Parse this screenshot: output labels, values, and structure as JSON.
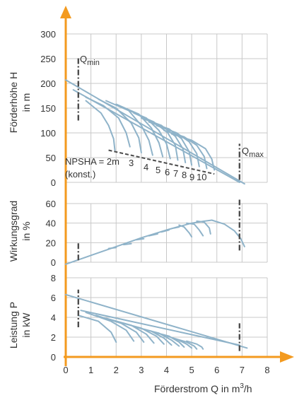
{
  "colors": {
    "curve": "#8fb3c9",
    "grid": "#c8c8c8",
    "axis": "#f39a1f",
    "dash": "#4d4d4d",
    "tick": "#333333"
  },
  "chart_data": [
    {
      "type": "line",
      "ylabel": [
        "Förderhöhe H",
        "in  m"
      ],
      "ylim": [
        0,
        300
      ],
      "y_ticks": [
        "0",
        "50",
        "100",
        "150",
        "200",
        "250",
        "300"
      ],
      "xlim": [
        0,
        8
      ],
      "grid": true,
      "series": [
        {
          "x": [
            0,
            7.1
          ],
          "y": [
            207,
            -3
          ]
        },
        {
          "x": [
            0.3,
            6.9
          ],
          "y": [
            187,
            0
          ]
        },
        {
          "x": [
            0.8,
            1.4,
            1.7,
            1.9,
            1.95
          ],
          "y": [
            165,
            140,
            115,
            88,
            65
          ]
        },
        {
          "x": [
            0.8,
            1.5,
            2.1,
            2.4,
            2.55
          ],
          "y": [
            172,
            155,
            130,
            100,
            72
          ]
        },
        {
          "x": [
            1.3,
            2.0,
            2.6,
            2.9,
            3.0
          ],
          "y": [
            168,
            150,
            120,
            90,
            60
          ]
        },
        {
          "x": [
            1.6,
            2.5,
            3.0,
            3.3,
            3.45
          ],
          "y": [
            165,
            145,
            115,
            85,
            55
          ]
        },
        {
          "x": [
            2.0,
            2.9,
            3.4,
            3.7,
            3.85
          ],
          "y": [
            158,
            138,
            110,
            80,
            52
          ]
        },
        {
          "x": [
            2.3,
            3.2,
            3.7,
            4.0,
            4.15
          ],
          "y": [
            150,
            130,
            105,
            78,
            48
          ]
        },
        {
          "x": [
            2.7,
            3.5,
            4.05,
            4.35,
            4.45
          ],
          "y": [
            140,
            122,
            100,
            75,
            45
          ]
        },
        {
          "x": [
            3.0,
            3.8,
            4.35,
            4.65,
            4.75
          ],
          "y": [
            130,
            115,
            93,
            68,
            40
          ]
        },
        {
          "x": [
            3.3,
            4.1,
            4.6,
            4.9,
            5.0
          ],
          "y": [
            122,
            108,
            88,
            62,
            35
          ]
        },
        {
          "x": [
            3.6,
            4.4,
            4.9,
            5.2,
            5.3
          ],
          "y": [
            115,
            100,
            82,
            58,
            32
          ]
        },
        {
          "x": [
            3.9,
            4.7,
            5.2,
            5.5,
            5.6
          ],
          "y": [
            105,
            92,
            75,
            52,
            28
          ]
        },
        {
          "x": [
            4.2,
            5.0,
            5.55,
            5.8,
            5.9
          ],
          "y": [
            98,
            85,
            68,
            47,
            25
          ]
        }
      ],
      "npsha_line": {
        "x": [
          1.7,
          5.9
        ],
        "y": [
          65,
          17
        ]
      },
      "qmin": {
        "x": 0.5,
        "y": [
          125,
          255
        ]
      },
      "qmax": {
        "x": 6.9,
        "y": [
          5,
          78
        ]
      },
      "npsha_label": [
        "NPSHA = 2m",
        "(konst.)"
      ],
      "npsha_values": [
        "3",
        "4",
        "5",
        "6",
        "7",
        "8",
        "9",
        "10"
      ],
      "qmin_label": {
        "main": "Q",
        "sub": "min"
      },
      "qmax_label": {
        "main": "Q",
        "sub": "max"
      }
    },
    {
      "type": "line",
      "ylabel": [
        "Wirkungsgrad",
        "in %"
      ],
      "ylim": [
        0,
        60
      ],
      "y_ticks": [
        "0",
        "20",
        "40",
        "60"
      ],
      "xlim": [
        0,
        8
      ],
      "grid": true,
      "series": [
        {
          "x": [
            0,
            1,
            2,
            3,
            4,
            5.0,
            5.5,
            5.8
          ],
          "y": [
            -2,
            7,
            16,
            25,
            33,
            40,
            42,
            43
          ]
        },
        {
          "x": [
            5.8,
            6.3,
            6.7,
            6.95,
            7.1
          ],
          "y": [
            43,
            39,
            32,
            24,
            16
          ]
        },
        {
          "x": [
            1.7,
            2.0
          ],
          "y": [
            14,
            15
          ]
        },
        {
          "x": [
            2.3,
            2.6
          ],
          "y": [
            18,
            19
          ]
        },
        {
          "x": [
            2.8,
            3.1
          ],
          "y": [
            23,
            24
          ]
        },
        {
          "x": [
            3.3,
            3.65
          ],
          "y": [
            27,
            29
          ]
        },
        {
          "x": [
            3.8,
            4.1
          ],
          "y": [
            31,
            33
          ]
        },
        {
          "x": [
            4.3,
            4.5
          ],
          "y": [
            35,
            36
          ]
        },
        {
          "x": [
            4.5,
            4.7,
            4.9,
            5.0
          ],
          "y": [
            38,
            36,
            30,
            26
          ]
        },
        {
          "x": [
            4.8,
            5.1,
            5.3,
            5.45
          ],
          "y": [
            40,
            39,
            33,
            27
          ]
        },
        {
          "x": [
            5.2,
            5.5,
            5.7,
            5.75
          ],
          "y": [
            42,
            41,
            35,
            29
          ]
        }
      ],
      "qmin": {
        "x": 0.5,
        "y": [
          2,
          20
        ]
      },
      "qmax": {
        "x": 6.9,
        "y": [
          12,
          64
        ]
      }
    },
    {
      "type": "line",
      "ylabel": [
        "Leistung P",
        "in kW"
      ],
      "ylim": [
        0,
        8
      ],
      "y_ticks": [
        "0",
        "2",
        "4",
        "6",
        "8"
      ],
      "xlim": [
        0,
        8
      ],
      "x_ticks": [
        "0",
        "1",
        "2",
        "3",
        "4",
        "5",
        "6",
        "7",
        "8"
      ],
      "xlabel": {
        "main": "Förderstrom Q in m",
        "sup": "3",
        "end": "/h"
      },
      "grid": true,
      "series": [
        {
          "x": [
            0,
            7.2
          ],
          "y": [
            6.3,
            0.9
          ]
        },
        {
          "x": [
            0.6,
            6.9
          ],
          "y": [
            4.7,
            1.2
          ]
        },
        {
          "x": [
            0.5,
            1.3,
            1.8,
            2.0
          ],
          "y": [
            4.2,
            3.6,
            2.5,
            1.5
          ]
        },
        {
          "x": [
            0.8,
            1.8,
            2.4,
            2.7
          ],
          "y": [
            4.5,
            3.6,
            2.7,
            1.6
          ]
        },
        {
          "x": [
            1.2,
            2.2,
            2.8,
            3.1
          ],
          "y": [
            4.2,
            3.4,
            2.5,
            1.5
          ]
        },
        {
          "x": [
            1.6,
            2.6,
            3.2,
            3.5
          ],
          "y": [
            3.9,
            3.2,
            2.3,
            1.4
          ]
        },
        {
          "x": [
            2.0,
            3.0,
            3.6,
            3.9
          ],
          "y": [
            3.6,
            2.9,
            2.1,
            1.3
          ]
        },
        {
          "x": [
            2.8,
            3.4,
            3.9,
            4.2
          ],
          "y": [
            3.0,
            2.6,
            1.9,
            1.2
          ]
        },
        {
          "x": [
            3.1,
            3.7,
            4.2,
            4.5
          ],
          "y": [
            2.8,
            2.4,
            1.7,
            1.1
          ]
        },
        {
          "x": [
            3.5,
            4.1,
            4.5,
            4.7
          ],
          "y": [
            2.5,
            2.1,
            1.5,
            1.0
          ]
        },
        {
          "x": [
            3.9,
            4.4,
            4.8,
            5.0
          ],
          "y": [
            2.2,
            1.8,
            1.3,
            0.9
          ]
        },
        {
          "x": [
            4.4,
            4.8,
            5.1,
            5.2
          ],
          "y": [
            1.8,
            1.5,
            1.1,
            0.8
          ]
        },
        {
          "x": [
            4.8,
            5.2,
            5.4,
            5.45
          ],
          "y": [
            1.6,
            1.3,
            1.0,
            0.8
          ]
        }
      ],
      "qmin": {
        "x": 0.5,
        "y": [
          3.0,
          6.8
        ]
      },
      "qmax": {
        "x": 6.9,
        "y": [
          0.6,
          3.4
        ]
      }
    }
  ]
}
